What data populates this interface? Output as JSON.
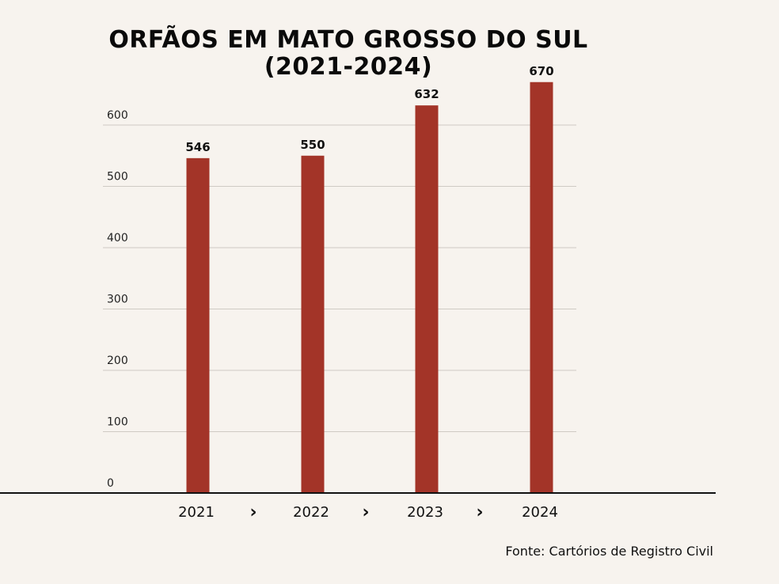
{
  "title_line1": "ORFÃOS EM MATO GROSSO DO SUL",
  "title_line2": "(2021-2024)",
  "source": "Fonte: Cartórios de Registro Civil",
  "chart_data": {
    "type": "bar",
    "title": "ORFÃOS EM MATO GROSSO DO SUL (2021-2024)",
    "categories": [
      "2021",
      "2022",
      "2023",
      "2024"
    ],
    "values": [
      546,
      550,
      632,
      670
    ],
    "data_labels": [
      "546",
      "550",
      "632",
      "670"
    ],
    "y_ticks": [
      0,
      100,
      200,
      300,
      400,
      500,
      600
    ],
    "ylim": [
      0,
      700
    ],
    "xlabel": "",
    "ylabel": "",
    "separator_glyph": "›",
    "grid": true,
    "legend": "none",
    "bar_color": "#a33428",
    "grid_color": "#cfcac4",
    "axis_color": "#111111"
  }
}
